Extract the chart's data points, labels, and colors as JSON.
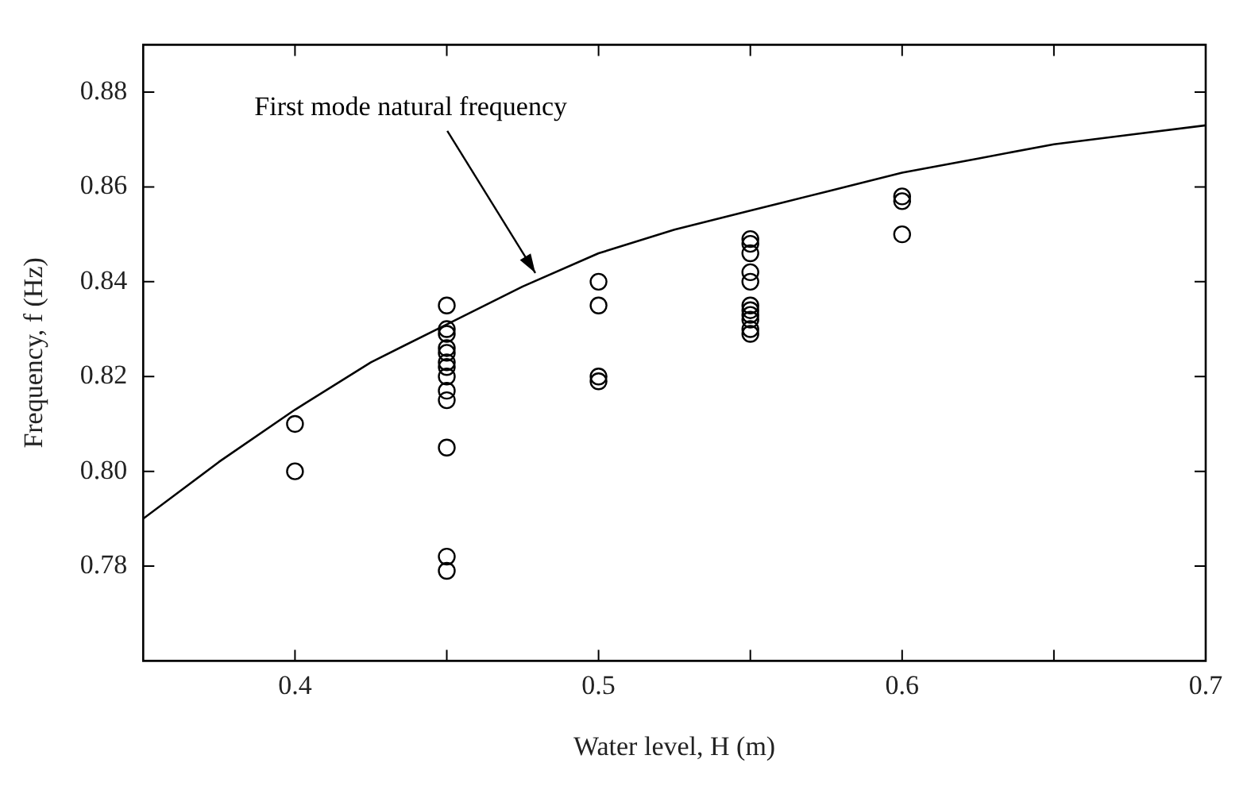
{
  "chart_data": {
    "type": "scatter",
    "xlabel": "Water level, H (m)",
    "ylabel": "Frequency, f (Hz)",
    "xlim": [
      0.35,
      0.7
    ],
    "xticks": [
      0.4,
      {
        "value": 0.45,
        "label": null
      },
      0.5,
      {
        "value": 0.55,
        "label": null
      },
      0.6,
      {
        "value": 0.65,
        "label": null
      },
      0.7
    ],
    "ylim": [
      0.76,
      0.89
    ],
    "yticks": [
      0.78,
      {
        "value": 0.8,
        "label": "0.80"
      },
      0.82,
      0.84,
      0.86,
      0.88
    ],
    "line_style": "solid",
    "annotations": [
      {
        "text": "First mode natural frequency",
        "x": 0.48,
        "y": 0.841
      }
    ],
    "series": [
      {
        "type": "line",
        "color": "#000000",
        "x": [
          0.35,
          0.375,
          0.4,
          0.425,
          0.45,
          0.475,
          0.5,
          0.525,
          0.55,
          0.575,
          0.6,
          0.625,
          0.65,
          0.675,
          0.7
        ],
        "values": [
          0.79,
          0.802,
          0.813,
          0.823,
          0.831,
          0.839,
          0.846,
          0.851,
          0.855,
          0.859,
          0.863,
          0.866,
          0.869,
          0.871,
          0.873
        ]
      },
      {
        "marker": "circle",
        "color": "#000000",
        "x": [
          0.4,
          0.4,
          0.45,
          0.45,
          0.45,
          0.45,
          0.45,
          0.45,
          0.45,
          0.45,
          0.45,
          0.45,
          0.45,
          0.45,
          0.45,
          0.5,
          0.5,
          0.5,
          0.5,
          0.55,
          0.55,
          0.55,
          0.55,
          0.55,
          0.55,
          0.55,
          0.55,
          0.55,
          0.55,
          0.55,
          0.6,
          0.6,
          0.6
        ],
        "values": [
          0.81,
          0.8,
          0.835,
          0.83,
          0.829,
          0.826,
          0.825,
          0.823,
          0.822,
          0.82,
          0.817,
          0.815,
          0.805,
          0.782,
          0.779,
          0.84,
          0.835,
          0.82,
          0.819,
          0.849,
          0.848,
          0.846,
          0.842,
          0.84,
          0.835,
          0.834,
          0.833,
          0.832,
          0.83,
          0.829,
          0.858,
          0.857,
          0.85
        ]
      }
    ]
  }
}
